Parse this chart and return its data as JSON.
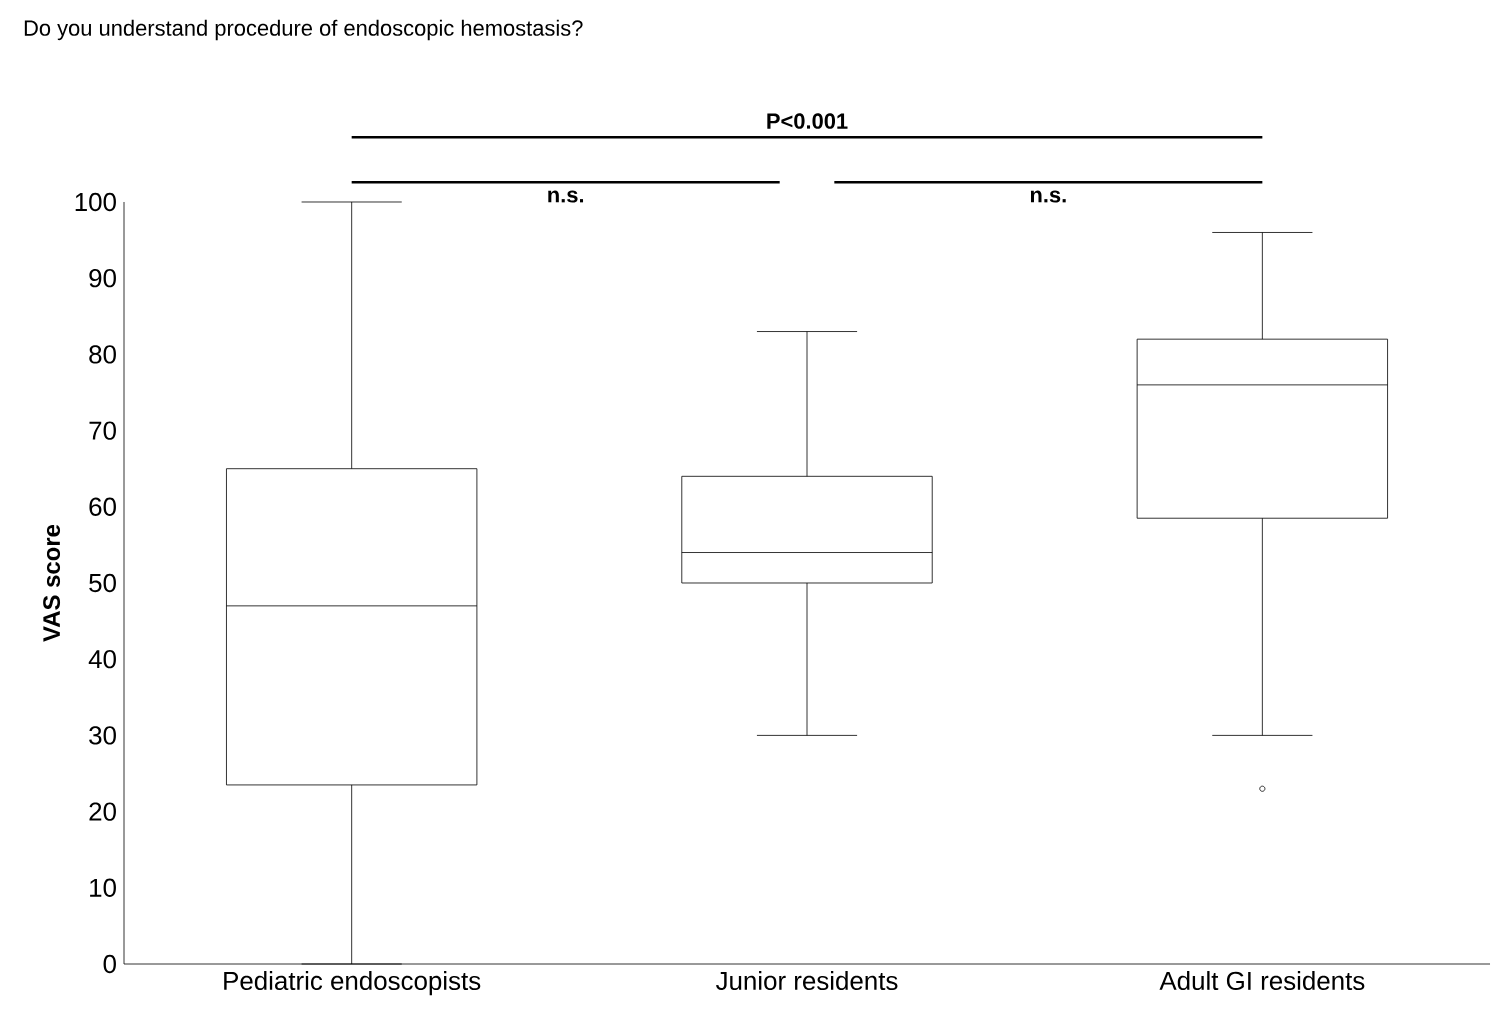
{
  "chart_data": {
    "type": "box",
    "title": "Do you understand procedure of endoscopic hemostasis?",
    "ylabel": "VAS score",
    "categories": [
      "Pediatric endoscopists",
      "Junior residents",
      "Adult GI residents"
    ],
    "boxes": [
      {
        "low": 0,
        "q1": 23.5,
        "median": 47,
        "q3": 65,
        "high": 100
      },
      {
        "low": 30,
        "q1": 50,
        "median": 54,
        "q3": 64,
        "high": 83
      },
      {
        "low": 30,
        "q1": 58.5,
        "median": 76,
        "q3": 82,
        "high": 96,
        "outliers": [
          23
        ]
      }
    ],
    "ylim": [
      0,
      100
    ],
    "yticks": [
      0,
      10,
      20,
      30,
      40,
      50,
      60,
      70,
      80,
      90,
      100
    ],
    "grid": false,
    "annotations": [
      "P<0.001",
      "n.s.",
      "n.s."
    ]
  }
}
